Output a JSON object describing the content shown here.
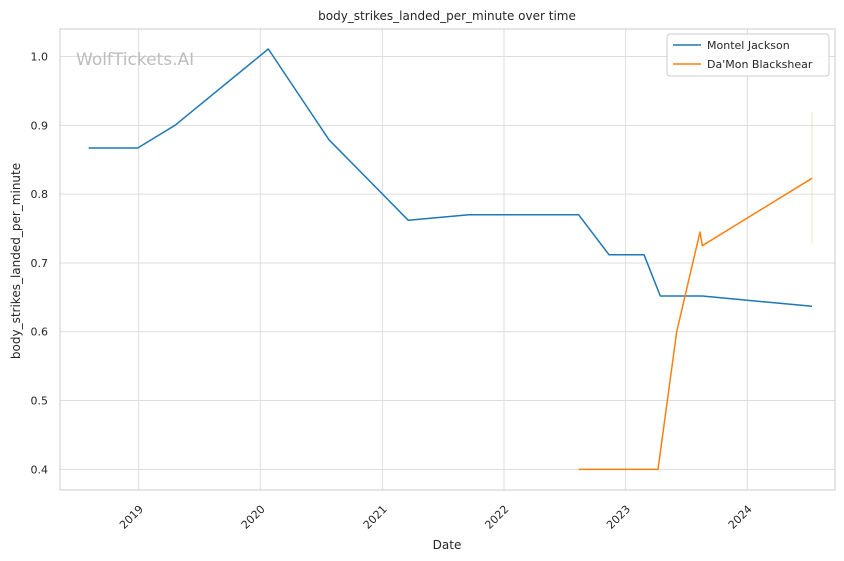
{
  "chart_data": {
    "type": "line",
    "title": "body_strikes_landed_per_minute over time",
    "xlabel": "Date",
    "ylabel": "body_strikes_landed_per_minute",
    "xlim": [
      "2018-05-10",
      "2024-09-20"
    ],
    "ylim": [
      0.37,
      1.04
    ],
    "x_ticks": [
      "2019",
      "2020",
      "2021",
      "2022",
      "2023",
      "2024"
    ],
    "y_ticks": [
      "0.4",
      "0.5",
      "0.6",
      "0.7",
      "0.8",
      "0.9",
      "1.0"
    ],
    "grid": true,
    "legend_position": "top-right",
    "watermark": "WolfTickets.AI",
    "series": [
      {
        "name": "Montel Jackson",
        "color": "#1f77b4",
        "points": [
          [
            "2018-08-04",
            0.867
          ],
          [
            "2018-12-29",
            0.867
          ],
          [
            "2019-04-20",
            0.9
          ],
          [
            "2020-01-25",
            1.011
          ],
          [
            "2020-07-25",
            0.879
          ],
          [
            "2021-03-20",
            0.762
          ],
          [
            "2021-09-18",
            0.77
          ],
          [
            "2022-08-13",
            0.77
          ],
          [
            "2022-11-12",
            0.712
          ],
          [
            "2023-02-25",
            0.712
          ],
          [
            "2023-04-15",
            0.652
          ],
          [
            "2023-08-19",
            0.652
          ],
          [
            "2024-07-13",
            0.637
          ]
        ]
      },
      {
        "name": "Da'Mon Blackshear",
        "color": "#ff7f0e",
        "points": [
          [
            "2022-08-13",
            0.4
          ],
          [
            "2023-04-08",
            0.4
          ],
          [
            "2023-06-03",
            0.6
          ],
          [
            "2023-08-12",
            0.745
          ],
          [
            "2023-08-19",
            0.725
          ],
          [
            "2024-07-13",
            0.823
          ]
        ],
        "error_band": {
          "x": "2024-07-13",
          "low": 0.727,
          "high": 0.92
        }
      }
    ]
  }
}
